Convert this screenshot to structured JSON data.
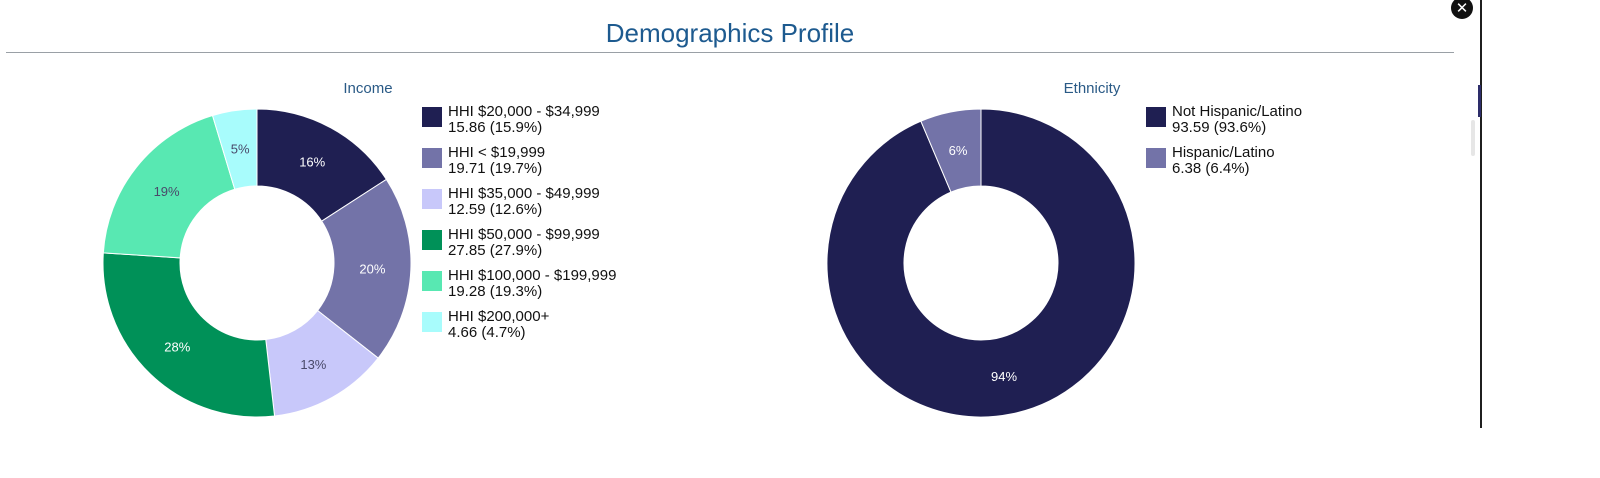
{
  "header": {
    "title": "Demographics Profile",
    "close_label": "✕"
  },
  "chart_data": [
    {
      "type": "pie",
      "title": "Income",
      "donut": true,
      "legend_position": "right",
      "series": [
        {
          "name": "HHI $20,000 - $34,999",
          "value": 15.86,
          "value_text": "15.86 (15.9%)",
          "label": "16%",
          "color": "#1f1f52"
        },
        {
          "name": "HHI < $19,999",
          "value": 19.71,
          "value_text": "19.71 (19.7%)",
          "label": "20%",
          "color": "#7373a8"
        },
        {
          "name": "HHI $35,000 - $49,999",
          "value": 12.59,
          "value_text": "12.59 (12.6%)",
          "label": "13%",
          "color": "#c8c8fa"
        },
        {
          "name": "HHI $50,000 - $99,999",
          "value": 27.85,
          "value_text": "27.85 (27.9%)",
          "label": "28%",
          "color": "#009158"
        },
        {
          "name": "HHI $100,000 - $199,999",
          "value": 19.28,
          "value_text": "19.28 (19.3%)",
          "label": "19%",
          "color": "#58e8b2"
        },
        {
          "name": "HHI $200,000+",
          "value": 4.66,
          "value_text": "4.66 (4.7%)",
          "label": "5%",
          "color": "#a8fcfc"
        }
      ]
    },
    {
      "type": "pie",
      "title": "Ethnicity",
      "donut": true,
      "legend_position": "right",
      "series": [
        {
          "name": "Not Hispanic/Latino",
          "value": 93.59,
          "value_text": "93.59 (93.6%)",
          "label": "94%",
          "color": "#1f1f52"
        },
        {
          "name": "Hispanic/Latino",
          "value": 6.38,
          "value_text": "6.38 (6.4%)",
          "label": "6%",
          "color": "#7373a8"
        }
      ]
    }
  ]
}
